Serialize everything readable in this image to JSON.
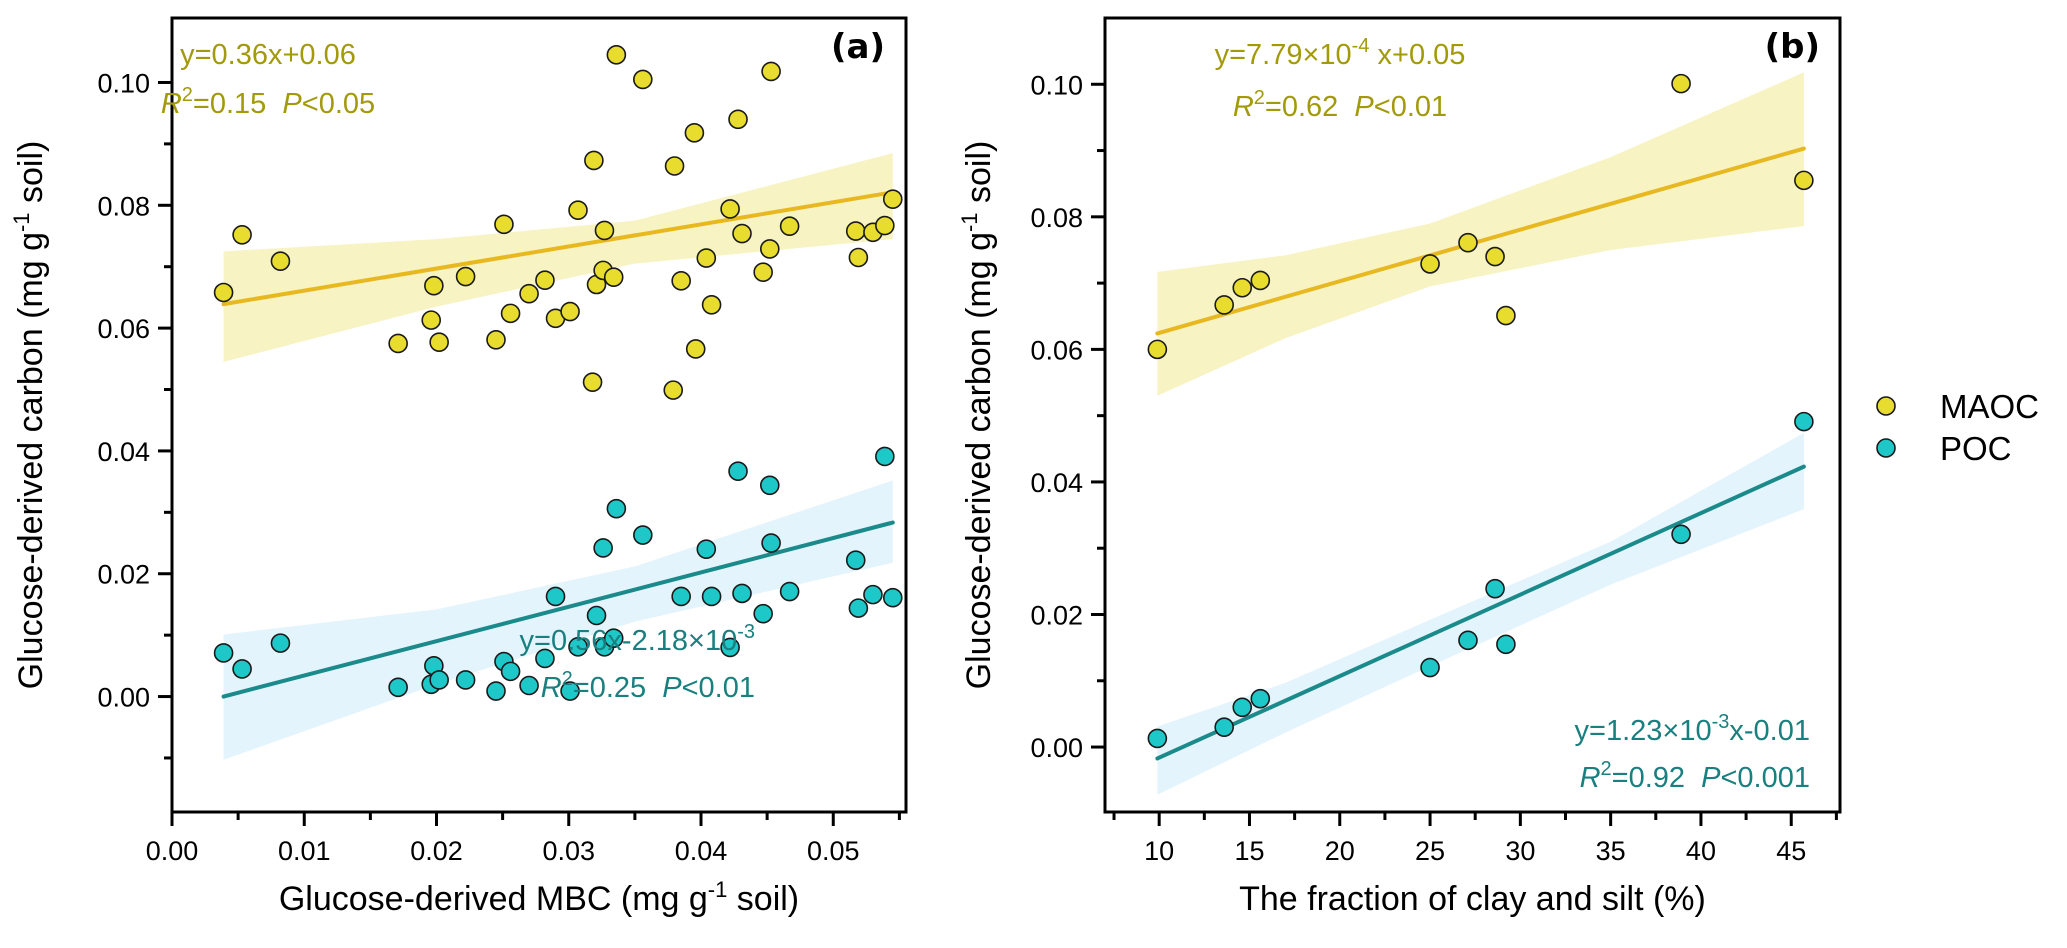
{
  "chart_data": [
    {
      "type": "scatter",
      "panel_label": "(a)",
      "xlabel": "Glucose-derived MBC (mg g⁻¹ soil)",
      "xlabel_parts": {
        "main": "Glucose-derived MBC (mg g",
        "sup": "-1",
        "tail": " soil)"
      },
      "ylabel_parts": {
        "main": "Glucose-derived carbon (mg g",
        "sup": "-1",
        "tail": " soil)"
      },
      "xlim": [
        0.0,
        0.0555
      ],
      "ylim": [
        -0.0188,
        0.1105
      ],
      "xticks": [
        0.0,
        0.01,
        0.02,
        0.03,
        0.04,
        0.05
      ],
      "xtick_labels": [
        "0.00",
        "0.01",
        "0.02",
        "0.03",
        "0.04",
        "0.05"
      ],
      "xminor": [
        0.005,
        0.015,
        0.025,
        0.035,
        0.045,
        0.055
      ],
      "yticks": [
        0.0,
        0.02,
        0.04,
        0.06,
        0.08,
        0.1
      ],
      "ytick_labels": [
        "0.00",
        "0.02",
        "0.04",
        "0.06",
        "0.08",
        "0.10"
      ],
      "yminor": [
        -0.01,
        0.01,
        0.03,
        0.05,
        0.07,
        0.09
      ],
      "series": [
        {
          "name": "MAOC",
          "color": "#e8dc2e",
          "line_color": "#e8b820",
          "band_color": "#f7f3c3",
          "fit": {
            "slope": 0.36,
            "intercept": 0.0625,
            "x_range": [
              0.0039,
              0.0545
            ]
          },
          "band": {
            "x": [
              0.0039,
              0.02,
              0.035,
              0.0545
            ],
            "upper": [
              0.0725,
              0.0745,
              0.0775,
              0.0885
            ],
            "lower": [
              0.0545,
              0.0635,
              0.0705,
              0.0745
            ]
          },
          "equation": {
            "main": "y=0.36x+0.06",
            "r2_label": "R",
            "r2_sup": "2",
            "r2_value": "=0.15",
            "p_label": "P",
            "p_value": "<0.05"
          },
          "points": [
            [
              0.0039,
              0.0658
            ],
            [
              0.0053,
              0.0752
            ],
            [
              0.0082,
              0.0709
            ],
            [
              0.0171,
              0.0575
            ],
            [
              0.0196,
              0.0613
            ],
            [
              0.0198,
              0.0669
            ],
            [
              0.0202,
              0.0577
            ],
            [
              0.0222,
              0.0684
            ],
            [
              0.0245,
              0.0581
            ],
            [
              0.0251,
              0.0769
            ],
            [
              0.0256,
              0.0624
            ],
            [
              0.027,
              0.0656
            ],
            [
              0.0282,
              0.0678
            ],
            [
              0.029,
              0.0616
            ],
            [
              0.0301,
              0.0627
            ],
            [
              0.0307,
              0.0792
            ],
            [
              0.0318,
              0.0512
            ],
            [
              0.0319,
              0.0873
            ],
            [
              0.0321,
              0.0671
            ],
            [
              0.0326,
              0.0694
            ],
            [
              0.0327,
              0.0759
            ],
            [
              0.0334,
              0.0683
            ],
            [
              0.0336,
              0.1045
            ],
            [
              0.0356,
              0.1005
            ],
            [
              0.0379,
              0.0499
            ],
            [
              0.038,
              0.0864
            ],
            [
              0.0385,
              0.0677
            ],
            [
              0.0395,
              0.0918
            ],
            [
              0.0396,
              0.0566
            ],
            [
              0.0404,
              0.0714
            ],
            [
              0.0408,
              0.0638
            ],
            [
              0.0422,
              0.0794
            ],
            [
              0.0428,
              0.094
            ],
            [
              0.0431,
              0.0754
            ],
            [
              0.0447,
              0.0691
            ],
            [
              0.0452,
              0.0729
            ],
            [
              0.0453,
              0.1018
            ],
            [
              0.0467,
              0.0766
            ],
            [
              0.0517,
              0.0758
            ],
            [
              0.0519,
              0.0715
            ],
            [
              0.053,
              0.0756
            ],
            [
              0.0539,
              0.0767
            ],
            [
              0.0545,
              0.081
            ]
          ]
        },
        {
          "name": "POC",
          "color": "#1fc8c8",
          "line_color": "#1a8a8a",
          "band_color": "#e3f4fc",
          "fit": {
            "slope": 0.56,
            "intercept": -0.00218,
            "x_range": [
              0.0039,
              0.0545
            ]
          },
          "band": {
            "x": [
              0.0039,
              0.02,
              0.035,
              0.0545
            ],
            "upper": [
              0.0101,
              0.0142,
              0.0212,
              0.0352
            ],
            "lower": [
              -0.0103,
              0.002,
              0.0122,
              0.0218
            ]
          },
          "equation": {
            "main": "y=0.56x-2.18×10",
            "main_sup": "-3",
            "r2_label": "R",
            "r2_sup": "2",
            "r2_value": "=0.25",
            "p_label": "P",
            "p_value": "<0.01"
          },
          "points": [
            [
              0.0039,
              0.0071
            ],
            [
              0.0053,
              0.0045
            ],
            [
              0.0082,
              0.0087
            ],
            [
              0.0171,
              0.0015
            ],
            [
              0.0196,
              0.002
            ],
            [
              0.0198,
              0.005
            ],
            [
              0.0202,
              0.0027
            ],
            [
              0.0222,
              0.0027
            ],
            [
              0.0245,
              0.0009
            ],
            [
              0.0251,
              0.0057
            ],
            [
              0.0256,
              0.0041
            ],
            [
              0.027,
              0.0018
            ],
            [
              0.0282,
              0.0062
            ],
            [
              0.029,
              0.0163
            ],
            [
              0.0301,
              0.0009
            ],
            [
              0.0307,
              0.0081
            ],
            [
              0.0321,
              0.0132
            ],
            [
              0.0326,
              0.0242
            ],
            [
              0.0327,
              0.0081
            ],
            [
              0.0334,
              0.0095
            ],
            [
              0.0336,
              0.0306
            ],
            [
              0.0356,
              0.0263
            ],
            [
              0.0385,
              0.0163
            ],
            [
              0.0404,
              0.024
            ],
            [
              0.0408,
              0.0163
            ],
            [
              0.0422,
              0.008
            ],
            [
              0.0428,
              0.0367
            ],
            [
              0.0431,
              0.0168
            ],
            [
              0.0447,
              0.0135
            ],
            [
              0.0452,
              0.0344
            ],
            [
              0.0453,
              0.025
            ],
            [
              0.0467,
              0.0171
            ],
            [
              0.0517,
              0.0222
            ],
            [
              0.0519,
              0.0144
            ],
            [
              0.053,
              0.0166
            ],
            [
              0.0539,
              0.0391
            ],
            [
              0.0545,
              0.0161
            ]
          ]
        }
      ]
    },
    {
      "type": "scatter",
      "panel_label": "(b)",
      "xlabel": "The fraction of clay and silt (%)",
      "ylabel_parts": {
        "main": "Glucose-derived carbon (mg g",
        "sup": "-1",
        "tail": " soil)"
      },
      "xlim": [
        7.0,
        47.7
      ],
      "ylim": [
        -0.0098,
        0.11
      ],
      "xticks": [
        10,
        15,
        20,
        25,
        30,
        35,
        40,
        45
      ],
      "xtick_labels": [
        "10",
        "15",
        "20",
        "25",
        "30",
        "35",
        "40",
        "45"
      ],
      "xminor": [
        7.5,
        12.5,
        17.5,
        22.5,
        27.5,
        32.5,
        37.5,
        42.5,
        47.5
      ],
      "yticks": [
        0.0,
        0.02,
        0.04,
        0.06,
        0.08,
        0.1
      ],
      "ytick_labels": [
        "0.00",
        "0.02",
        "0.04",
        "0.06",
        "0.08",
        "0.10"
      ],
      "yminor": [
        0.01,
        0.03,
        0.05,
        0.07,
        0.09
      ],
      "series": [
        {
          "name": "MAOC",
          "color": "#e8dc2e",
          "line_color": "#e8b820",
          "band_color": "#f7f3c3",
          "fit": {
            "slope": 0.000779,
            "intercept": 0.0547,
            "x_range": [
              9.9,
              45.7
            ]
          },
          "band": {
            "x": [
              9.9,
              17,
              25,
              35,
              45.7
            ],
            "upper": [
              0.0717,
              0.0742,
              0.079,
              0.089,
              0.1018
            ],
            "lower": [
              0.053,
              0.0617,
              0.0695,
              0.075,
              0.0786
            ]
          },
          "equation": {
            "main": "y=7.79×10",
            "main_sup": "-4",
            "main_tail": " x+0.05",
            "r2_label": "R",
            "r2_sup": "2",
            "r2_value": "=0.62",
            "p_label": "P",
            "p_value": "<0.01"
          },
          "points": [
            [
              9.9,
              0.06
            ],
            [
              13.6,
              0.0667
            ],
            [
              14.6,
              0.0693
            ],
            [
              15.6,
              0.0704
            ],
            [
              25.0,
              0.0729
            ],
            [
              27.1,
              0.0761
            ],
            [
              28.6,
              0.074
            ],
            [
              29.2,
              0.0651
            ],
            [
              38.9,
              0.1001
            ],
            [
              45.7,
              0.0855
            ]
          ]
        },
        {
          "name": "POC",
          "color": "#1fc8c8",
          "line_color": "#1a8a8a",
          "band_color": "#e3f4fc",
          "fit": {
            "slope": 0.00123,
            "intercept": -0.0139,
            "x_range": [
              9.9,
              45.7
            ]
          },
          "band": {
            "x": [
              9.9,
              17,
              25,
              35,
              45.7
            ],
            "upper": [
              0.0031,
              0.0097,
              0.0192,
              0.031,
              0.0474
            ],
            "lower": [
              -0.0072,
              0.0022,
              0.0122,
              0.0245,
              0.0359
            ]
          },
          "equation": {
            "main": "y=1.23×10",
            "main_sup": "-3",
            "main_tail": "x-0.01",
            "r2_label": "R",
            "r2_sup": "2",
            "r2_value": "=0.92",
            "p_label": "P",
            "p_value": "<0.001"
          },
          "points": [
            [
              9.9,
              0.0013
            ],
            [
              13.6,
              0.003
            ],
            [
              14.6,
              0.006
            ],
            [
              15.6,
              0.0073
            ],
            [
              25.0,
              0.012
            ],
            [
              27.1,
              0.0161
            ],
            [
              28.6,
              0.0239
            ],
            [
              29.2,
              0.0155
            ],
            [
              38.9,
              0.0321
            ],
            [
              45.7,
              0.0491
            ]
          ]
        }
      ]
    }
  ],
  "legend": {
    "placement": "right",
    "items": [
      {
        "label": "MAOC",
        "color": "#e8dc2e"
      },
      {
        "label": "POC",
        "color": "#1fc8c8"
      }
    ]
  },
  "text_colors": {
    "maoc_eq": "#a39a0a",
    "poc_eq": "#1a7f7f"
  }
}
